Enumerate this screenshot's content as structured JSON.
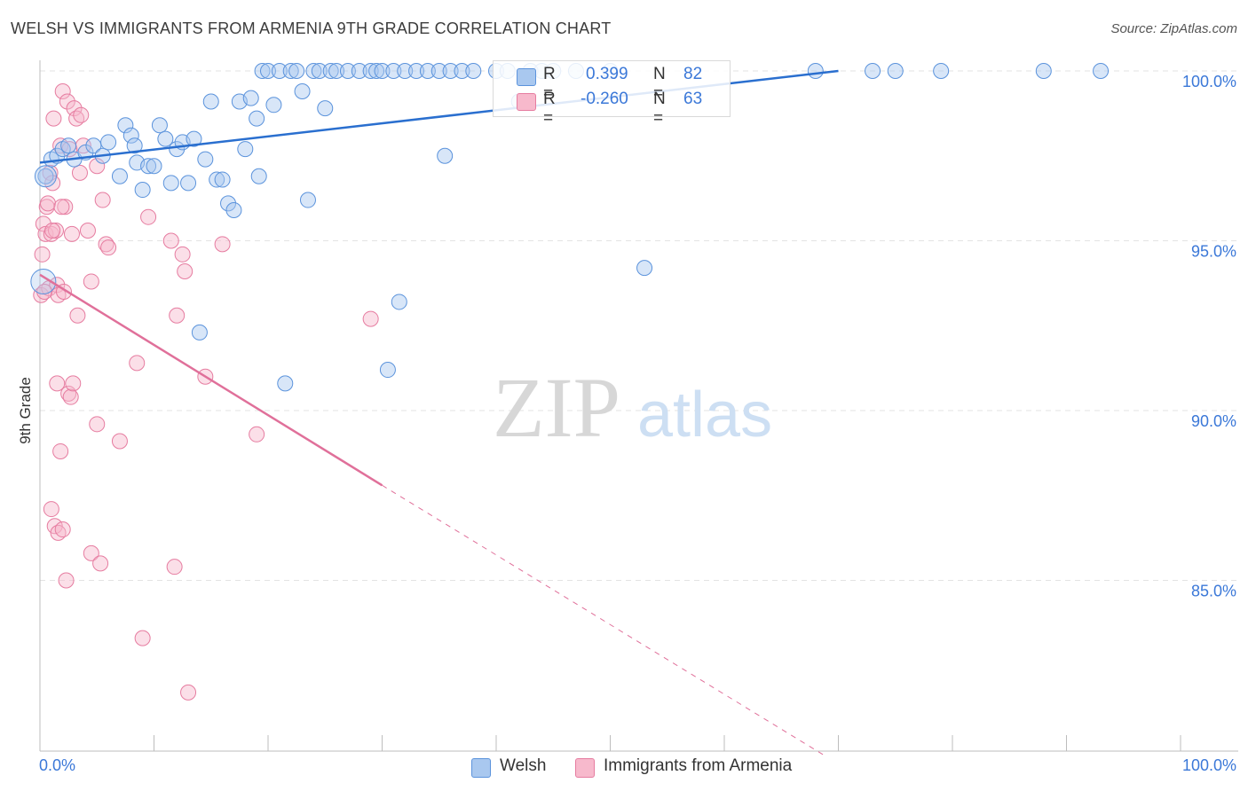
{
  "header": {
    "title": "WELSH VS IMMIGRANTS FROM ARMENIA 9TH GRADE CORRELATION CHART",
    "source": "Source: ZipAtlas.com"
  },
  "watermark": {
    "zip": "ZIP",
    "atlas": "atlas"
  },
  "legend": {
    "welsh": {
      "r_label": "R =",
      "r_value": "0.399",
      "n_label": "N =",
      "n_value": "82"
    },
    "armenia": {
      "r_label": "R =",
      "r_value": "-0.260",
      "n_label": "N =",
      "n_value": "63"
    }
  },
  "bottom_legend": {
    "welsh": "Welsh",
    "armenia": "Immigrants from Armenia"
  },
  "colors": {
    "welsh_fill": "#a9c8ef",
    "welsh_stroke": "#5b93dc",
    "welsh_line": "#2a6fcf",
    "armenia_fill": "#f7b9cc",
    "armenia_stroke": "#e67ca0",
    "armenia_line": "#e0709a",
    "axis_text": "#3b78d8",
    "grid": "#e3e3e3"
  },
  "chart_data": {
    "type": "scatter",
    "title": "WELSH VS IMMIGRANTS FROM ARMENIA 9TH GRADE CORRELATION CHART",
    "xlabel": "",
    "ylabel": "9th Grade",
    "xlim": [
      0,
      100
    ],
    "ylim": [
      80.0,
      100.5
    ],
    "x_tick_labels": [
      "0.0%",
      "100.0%"
    ],
    "y_ticks": [
      100,
      95,
      90,
      85
    ],
    "y_tick_labels": [
      "100.0%",
      "95.0%",
      "90.0%",
      "85.0%"
    ],
    "grid": true,
    "series": [
      {
        "name": "Welsh",
        "R": 0.399,
        "N": 82,
        "trend": {
          "x0": 0,
          "y0": 97.3,
          "x1": 70,
          "y1": 100.0
        },
        "points": [
          [
            0.5,
            96.9
          ],
          [
            1.0,
            97.4
          ],
          [
            1.5,
            97.5
          ],
          [
            2.0,
            97.7
          ],
          [
            2.5,
            97.8
          ],
          [
            3.0,
            97.4
          ],
          [
            4.0,
            97.6
          ],
          [
            4.7,
            97.8
          ],
          [
            5.5,
            97.5
          ],
          [
            6.0,
            97.9
          ],
          [
            7.0,
            96.9
          ],
          [
            7.5,
            98.4
          ],
          [
            8.0,
            98.1
          ],
          [
            8.3,
            97.8
          ],
          [
            8.5,
            97.3
          ],
          [
            9.0,
            96.5
          ],
          [
            9.5,
            97.2
          ],
          [
            10.0,
            97.2
          ],
          [
            10.5,
            98.4
          ],
          [
            11.0,
            98.0
          ],
          [
            11.5,
            96.7
          ],
          [
            12.0,
            97.7
          ],
          [
            12.5,
            97.9
          ],
          [
            13.0,
            96.7
          ],
          [
            13.5,
            98.0
          ],
          [
            14.0,
            92.3
          ],
          [
            14.5,
            97.4
          ],
          [
            15.0,
            99.1
          ],
          [
            15.5,
            96.8
          ],
          [
            16.0,
            96.8
          ],
          [
            16.5,
            96.1
          ],
          [
            17.0,
            95.9
          ],
          [
            17.5,
            99.1
          ],
          [
            18.0,
            97.7
          ],
          [
            18.5,
            99.2
          ],
          [
            19.0,
            98.6
          ],
          [
            19.2,
            96.9
          ],
          [
            19.5,
            100.0
          ],
          [
            20.0,
            100.0
          ],
          [
            20.5,
            99.0
          ],
          [
            21.0,
            100.0
          ],
          [
            21.5,
            90.8
          ],
          [
            22.0,
            100.0
          ],
          [
            22.5,
            100.0
          ],
          [
            23.0,
            99.4
          ],
          [
            23.5,
            96.2
          ],
          [
            24.0,
            100.0
          ],
          [
            24.5,
            100.0
          ],
          [
            25.0,
            98.9
          ],
          [
            25.5,
            100.0
          ],
          [
            26.0,
            100.0
          ],
          [
            27.0,
            100.0
          ],
          [
            28.0,
            100.0
          ],
          [
            29.0,
            100.0
          ],
          [
            29.5,
            100.0
          ],
          [
            30.0,
            100.0
          ],
          [
            30.5,
            91.2
          ],
          [
            31.0,
            100.0
          ],
          [
            32.0,
            100.0
          ],
          [
            33.0,
            100.0
          ],
          [
            34.0,
            100.0
          ],
          [
            35.0,
            100.0
          ],
          [
            35.5,
            97.5
          ],
          [
            36.0,
            100.0
          ],
          [
            37.0,
            100.0
          ],
          [
            38.0,
            100.0
          ],
          [
            40.0,
            100.0
          ],
          [
            41.0,
            100.0
          ],
          [
            42.0,
            99.1
          ],
          [
            43.0,
            100.0
          ],
          [
            44.0,
            100.0
          ],
          [
            45.0,
            100.0
          ],
          [
            47.0,
            100.0
          ],
          [
            50.0,
            100.0
          ],
          [
            53.0,
            94.2
          ],
          [
            68.0,
            100.0
          ],
          [
            73.0,
            100.0
          ],
          [
            75.0,
            100.0
          ],
          [
            79.0,
            100.0
          ],
          [
            88.0,
            100.0
          ],
          [
            93.0,
            100.0
          ],
          [
            31.5,
            93.2
          ]
        ]
      },
      {
        "name": "Immigrants from Armenia",
        "R": -0.26,
        "N": 63,
        "trend": {
          "x0": 0,
          "y0": 94.0,
          "x1": 30,
          "y1": 87.8,
          "dash_x1": 69,
          "dash_y1": 79.8
        },
        "points": [
          [
            0.1,
            93.4
          ],
          [
            0.2,
            94.6
          ],
          [
            0.3,
            95.5
          ],
          [
            0.5,
            95.2
          ],
          [
            0.6,
            96.0
          ],
          [
            0.8,
            93.6
          ],
          [
            0.9,
            97.0
          ],
          [
            1.0,
            95.2
          ],
          [
            1.1,
            96.7
          ],
          [
            1.2,
            98.6
          ],
          [
            1.4,
            95.3
          ],
          [
            1.5,
            93.7
          ],
          [
            1.6,
            93.4
          ],
          [
            1.8,
            97.8
          ],
          [
            2.0,
            99.4
          ],
          [
            2.2,
            96.0
          ],
          [
            2.4,
            99.1
          ],
          [
            2.6,
            97.7
          ],
          [
            2.8,
            95.2
          ],
          [
            3.0,
            98.9
          ],
          [
            3.2,
            98.6
          ],
          [
            3.5,
            97.0
          ],
          [
            3.8,
            97.8
          ],
          [
            4.2,
            95.3
          ],
          [
            4.5,
            93.8
          ],
          [
            5.0,
            97.2
          ],
          [
            5.5,
            96.2
          ],
          [
            5.8,
            94.9
          ],
          [
            6.0,
            94.8
          ],
          [
            1.0,
            87.1
          ],
          [
            1.3,
            86.6
          ],
          [
            1.6,
            86.4
          ],
          [
            2.0,
            86.5
          ],
          [
            2.3,
            85.0
          ],
          [
            2.5,
            90.5
          ],
          [
            2.7,
            90.4
          ],
          [
            2.9,
            90.8
          ],
          [
            3.3,
            92.8
          ],
          [
            1.5,
            90.8
          ],
          [
            1.8,
            88.8
          ],
          [
            4.5,
            85.8
          ],
          [
            5.0,
            89.6
          ],
          [
            5.3,
            85.5
          ],
          [
            7.0,
            89.1
          ],
          [
            8.5,
            91.4
          ],
          [
            9.0,
            83.3
          ],
          [
            9.5,
            95.7
          ],
          [
            11.5,
            95.0
          ],
          [
            12.0,
            92.8
          ],
          [
            12.5,
            94.6
          ],
          [
            12.7,
            94.1
          ],
          [
            13.0,
            81.7
          ],
          [
            14.5,
            91.0
          ],
          [
            16.0,
            94.9
          ],
          [
            19.0,
            89.3
          ],
          [
            29.0,
            92.7
          ],
          [
            11.8,
            85.4
          ],
          [
            0.4,
            93.5
          ],
          [
            0.7,
            96.1
          ],
          [
            1.9,
            96.0
          ],
          [
            3.6,
            98.7
          ],
          [
            1.1,
            95.3
          ],
          [
            2.1,
            93.5
          ]
        ]
      }
    ]
  }
}
